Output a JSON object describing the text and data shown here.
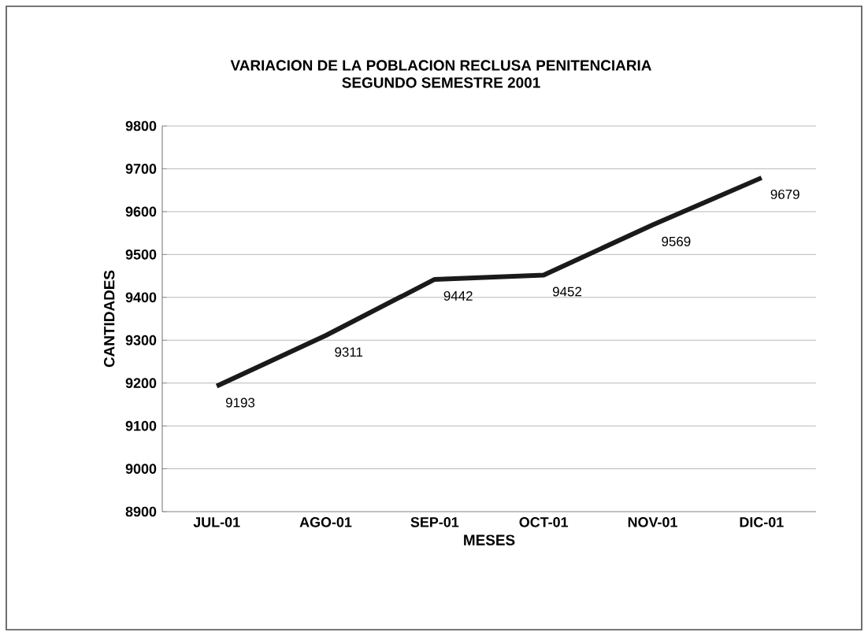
{
  "chart_data": {
    "type": "line",
    "title": "VARIACION DE LA POBLACION RECLUSA PENITENCIARIA",
    "subtitle": "SEGUNDO SEMESTRE 2001",
    "xlabel": "MESES",
    "ylabel": "CANTIDADES",
    "categories": [
      "JUL-01",
      "AGO-01",
      "SEP-01",
      "OCT-01",
      "NOV-01",
      "DIC-01"
    ],
    "values": [
      9193,
      9311,
      9442,
      9452,
      9569,
      9679
    ],
    "color": "#1a1a1a",
    "ylim": [
      8900,
      9800
    ],
    "yticks": [
      8900,
      9000,
      9100,
      9200,
      9300,
      9400,
      9500,
      9600,
      9700,
      9800
    ],
    "grid": "y",
    "data_labels": true,
    "marker": "none",
    "line_style": "solid"
  }
}
